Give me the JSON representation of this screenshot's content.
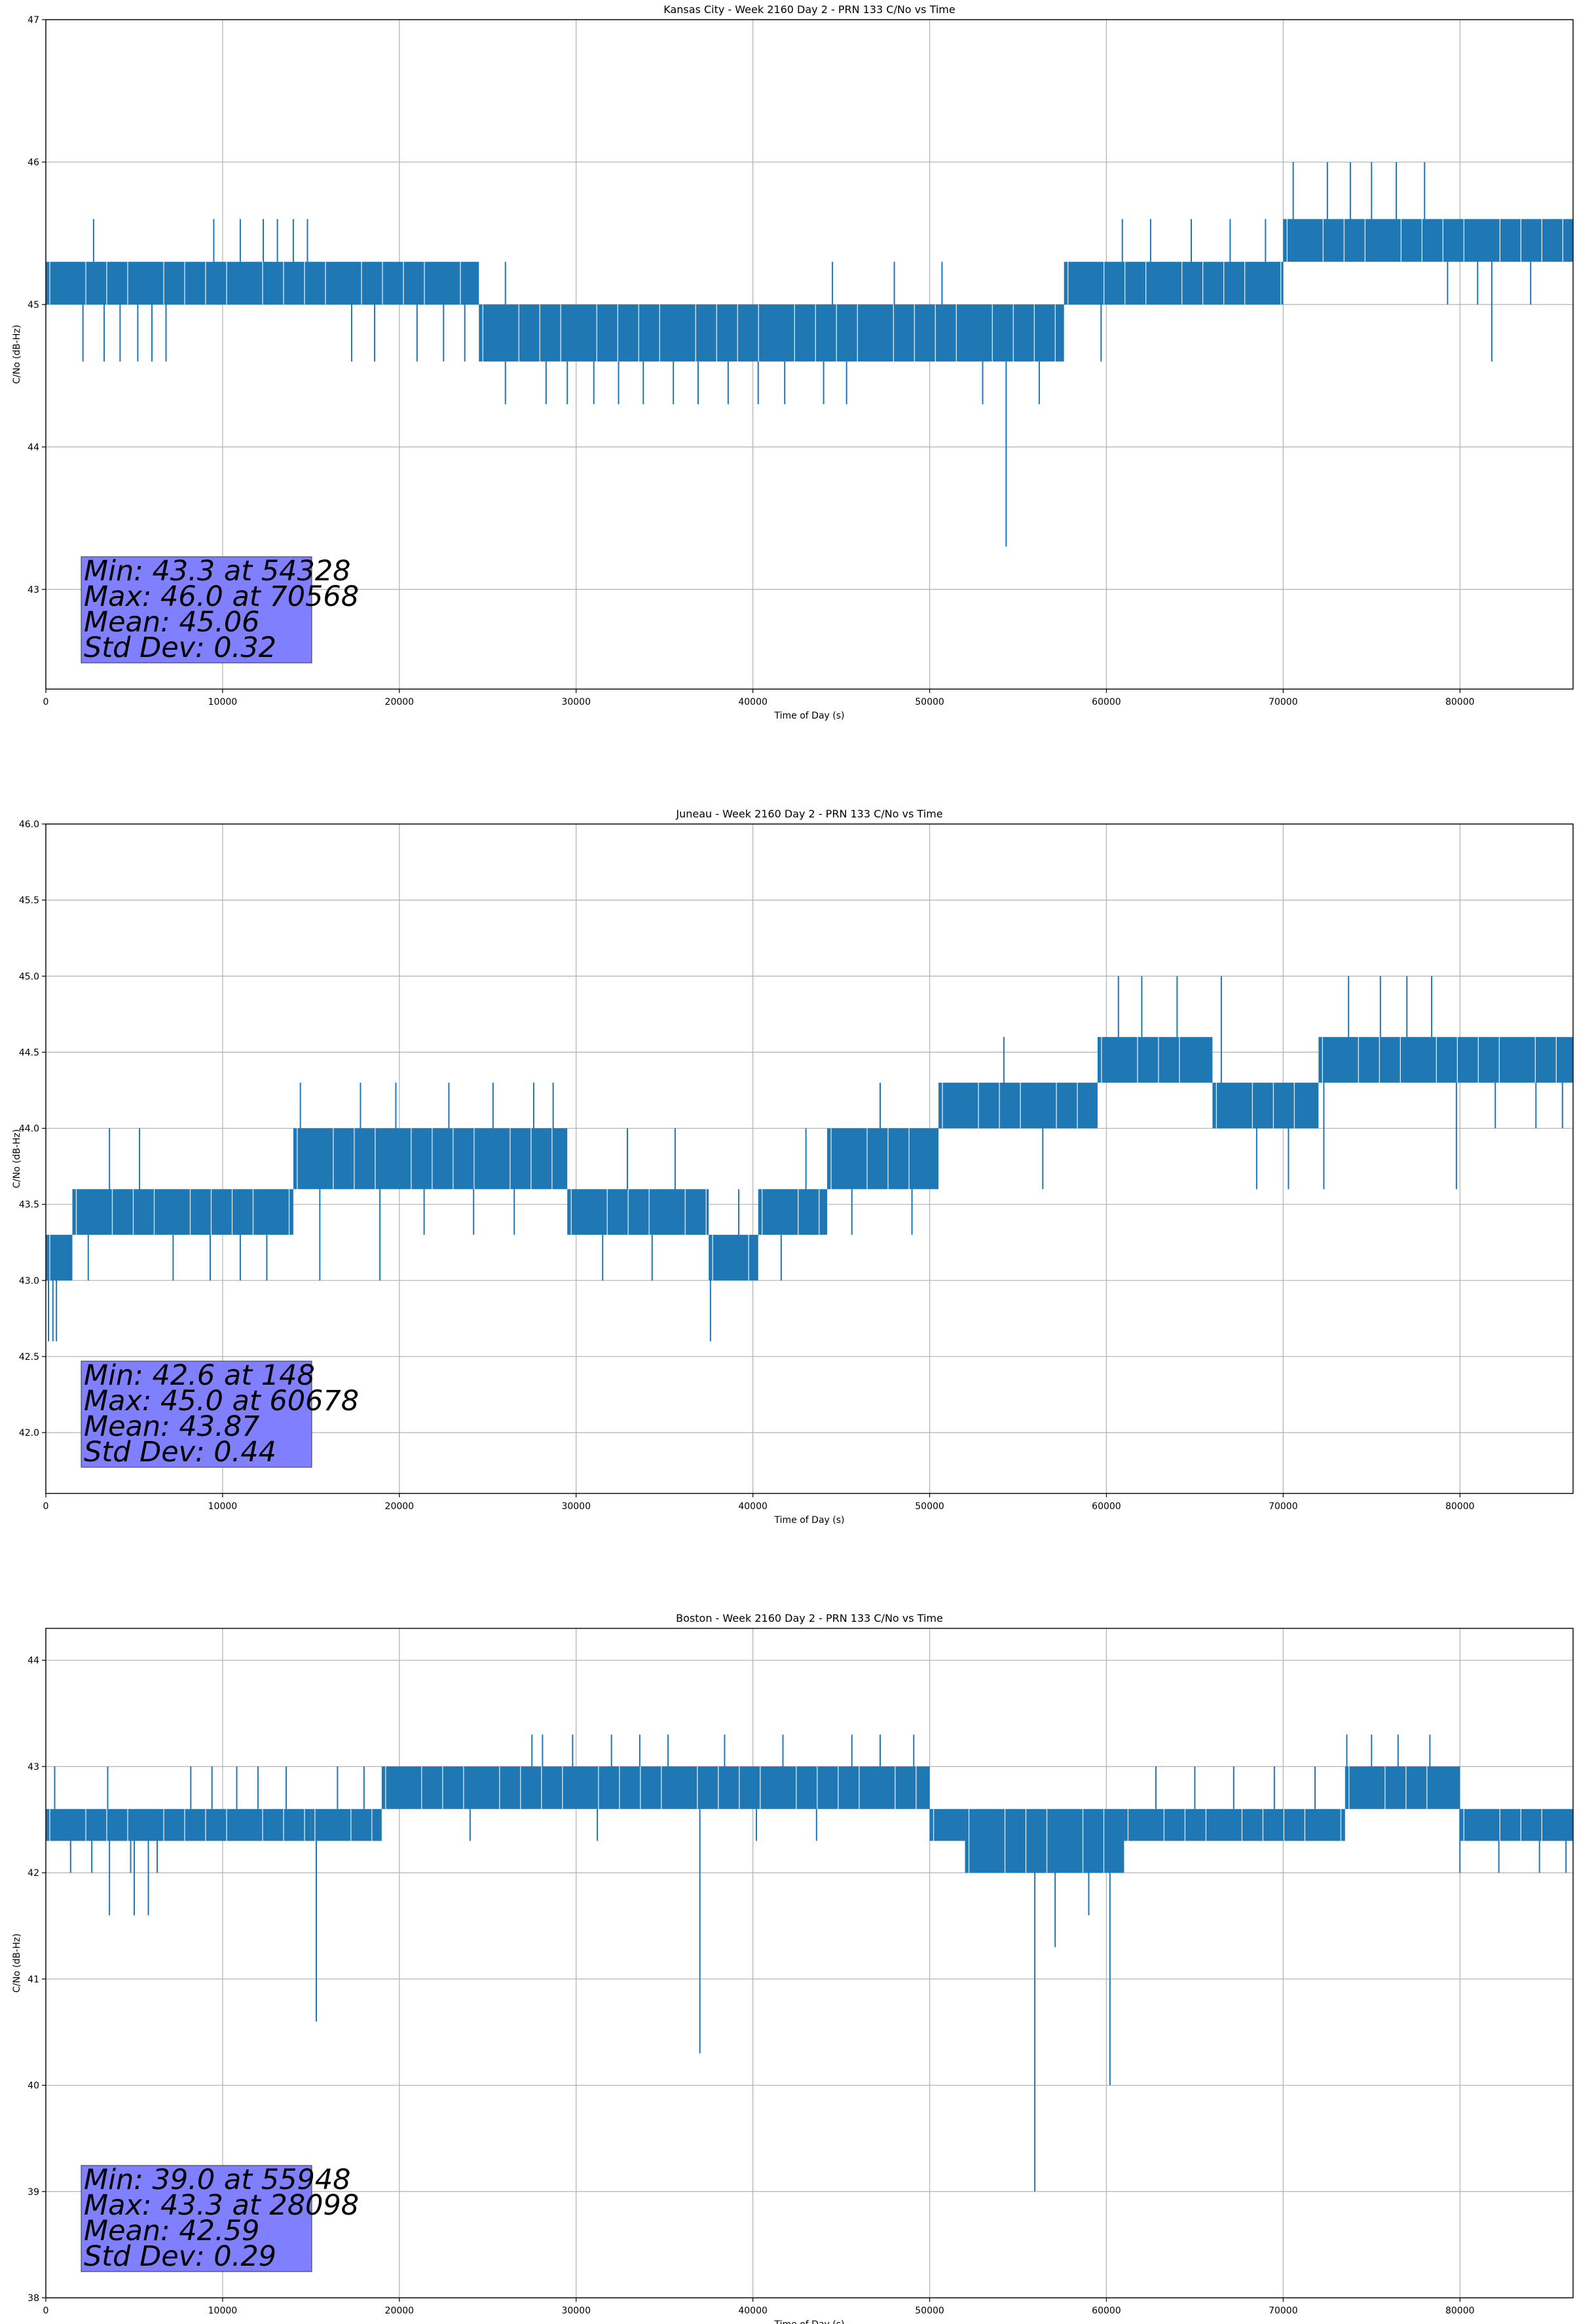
{
  "chart_data": [
    {
      "type": "line",
      "title": "Kansas City - Week 2160 Day 2 - PRN 133 C/No vs Time",
      "xlabel": "Time of Day (s)",
      "ylabel": "C/No (dB-Hz)",
      "xlim": [
        0,
        86400
      ],
      "ylim": [
        42.3,
        47.0
      ],
      "xticks": [
        0,
        10000,
        20000,
        30000,
        40000,
        50000,
        60000,
        70000,
        80000
      ],
      "yticks": [
        43,
        44,
        45,
        46,
        47
      ],
      "ytick_decimals": 0,
      "grid": true,
      "series_color": "#1f77b4",
      "segments": [
        {
          "x": [
            0,
            24500
          ],
          "low": 45.0,
          "high": 45.3
        },
        {
          "x": [
            24500,
            57600
          ],
          "low": 44.6,
          "high": 45.0
        },
        {
          "x": [
            57600,
            70000
          ],
          "low": 45.0,
          "high": 45.3
        },
        {
          "x": [
            70000,
            86400
          ],
          "low": 45.3,
          "high": 45.6
        }
      ],
      "spikes": [
        {
          "x": 1200,
          "y": 45.1
        },
        {
          "x": 2100,
          "y": 44.6
        },
        {
          "x": 3300,
          "y": 44.6
        },
        {
          "x": 4200,
          "y": 44.6
        },
        {
          "x": 5200,
          "y": 44.6
        },
        {
          "x": 6000,
          "y": 44.6
        },
        {
          "x": 6800,
          "y": 44.6
        },
        {
          "x": 2700,
          "y": 45.6
        },
        {
          "x": 9500,
          "y": 45.6
        },
        {
          "x": 11000,
          "y": 45.6
        },
        {
          "x": 12300,
          "y": 45.6
        },
        {
          "x": 13100,
          "y": 45.6
        },
        {
          "x": 14000,
          "y": 45.6
        },
        {
          "x": 14800,
          "y": 45.6
        },
        {
          "x": 17300,
          "y": 44.6
        },
        {
          "x": 18600,
          "y": 44.6
        },
        {
          "x": 21000,
          "y": 44.6
        },
        {
          "x": 22500,
          "y": 44.6
        },
        {
          "x": 23700,
          "y": 44.6
        },
        {
          "x": 26000,
          "y": 44.3
        },
        {
          "x": 28300,
          "y": 44.3
        },
        {
          "x": 29500,
          "y": 44.3
        },
        {
          "x": 31000,
          "y": 44.3
        },
        {
          "x": 32400,
          "y": 44.3
        },
        {
          "x": 33800,
          "y": 44.3
        },
        {
          "x": 35500,
          "y": 44.3
        },
        {
          "x": 36900,
          "y": 44.3
        },
        {
          "x": 38600,
          "y": 44.3
        },
        {
          "x": 40300,
          "y": 44.3
        },
        {
          "x": 41800,
          "y": 44.3
        },
        {
          "x": 44000,
          "y": 44.3
        },
        {
          "x": 45300,
          "y": 44.3
        },
        {
          "x": 26000,
          "y": 45.3
        },
        {
          "x": 44500,
          "y": 45.3
        },
        {
          "x": 48000,
          "y": 45.3
        },
        {
          "x": 50700,
          "y": 45.3
        },
        {
          "x": 53000,
          "y": 44.3
        },
        {
          "x": 54328,
          "y": 43.3
        },
        {
          "x": 56200,
          "y": 44.3
        },
        {
          "x": 59700,
          "y": 44.6
        },
        {
          "x": 60900,
          "y": 45.6
        },
        {
          "x": 62500,
          "y": 45.6
        },
        {
          "x": 64800,
          "y": 45.6
        },
        {
          "x": 67000,
          "y": 45.6
        },
        {
          "x": 69000,
          "y": 45.6
        },
        {
          "x": 70568,
          "y": 46.0
        },
        {
          "x": 72500,
          "y": 46.0
        },
        {
          "x": 73800,
          "y": 46.0
        },
        {
          "x": 75000,
          "y": 46.0
        },
        {
          "x": 76400,
          "y": 46.0
        },
        {
          "x": 78000,
          "y": 46.0
        },
        {
          "x": 79300,
          "y": 45.0
        },
        {
          "x": 81000,
          "y": 45.0
        },
        {
          "x": 81800,
          "y": 44.6
        },
        {
          "x": 84000,
          "y": 45.0
        },
        {
          "x": 85600,
          "y": 45.6
        }
      ],
      "stats": [
        "Min: 43.3 at 54328",
        "Max: 46.0 at 70568",
        "Mean: 45.06",
        "Std Dev: 0.32"
      ],
      "stats_box_color": "#8080ff"
    },
    {
      "type": "line",
      "title": "Juneau - Week 2160 Day 2 - PRN 133 C/No vs Time",
      "xlabel": "Time of Day (s)",
      "ylabel": "C/No (dB-Hz)",
      "xlim": [
        0,
        86400
      ],
      "ylim": [
        41.6,
        46.0
      ],
      "xticks": [
        0,
        10000,
        20000,
        30000,
        40000,
        50000,
        60000,
        70000,
        80000
      ],
      "yticks": [
        42.0,
        42.5,
        43.0,
        43.5,
        44.0,
        44.5,
        45.0,
        45.5,
        46.0
      ],
      "ytick_decimals": 1,
      "grid": true,
      "series_color": "#1f77b4",
      "segments": [
        {
          "x": [
            0,
            1500
          ],
          "low": 43.0,
          "high": 43.3
        },
        {
          "x": [
            1500,
            14000
          ],
          "low": 43.3,
          "high": 43.6
        },
        {
          "x": [
            14000,
            29500
          ],
          "low": 43.6,
          "high": 44.0
        },
        {
          "x": [
            29500,
            37500
          ],
          "low": 43.3,
          "high": 43.6
        },
        {
          "x": [
            37500,
            40300
          ],
          "low": 43.0,
          "high": 43.3
        },
        {
          "x": [
            40300,
            44200
          ],
          "low": 43.3,
          "high": 43.6
        },
        {
          "x": [
            44200,
            50500
          ],
          "low": 43.6,
          "high": 44.0
        },
        {
          "x": [
            50500,
            59500
          ],
          "low": 44.0,
          "high": 44.3
        },
        {
          "x": [
            59500,
            66000
          ],
          "low": 44.3,
          "high": 44.6
        },
        {
          "x": [
            66000,
            72000
          ],
          "low": 44.0,
          "high": 44.3
        },
        {
          "x": [
            72000,
            86400
          ],
          "low": 44.3,
          "high": 44.6
        }
      ],
      "spikes": [
        {
          "x": 148,
          "y": 42.6
        },
        {
          "x": 400,
          "y": 42.6
        },
        {
          "x": 600,
          "y": 42.6
        },
        {
          "x": 2400,
          "y": 43.0
        },
        {
          "x": 3600,
          "y": 44.0
        },
        {
          "x": 5300,
          "y": 44.0
        },
        {
          "x": 7200,
          "y": 43.0
        },
        {
          "x": 9300,
          "y": 43.0
        },
        {
          "x": 11000,
          "y": 43.0
        },
        {
          "x": 12500,
          "y": 43.0
        },
        {
          "x": 14400,
          "y": 44.3
        },
        {
          "x": 15500,
          "y": 43.0
        },
        {
          "x": 17800,
          "y": 44.3
        },
        {
          "x": 18900,
          "y": 43.0
        },
        {
          "x": 19800,
          "y": 44.3
        },
        {
          "x": 21400,
          "y": 43.3
        },
        {
          "x": 22800,
          "y": 44.3
        },
        {
          "x": 24200,
          "y": 43.3
        },
        {
          "x": 25300,
          "y": 44.3
        },
        {
          "x": 26500,
          "y": 43.3
        },
        {
          "x": 27600,
          "y": 44.3
        },
        {
          "x": 28700,
          "y": 44.3
        },
        {
          "x": 30000,
          "y": 43.3
        },
        {
          "x": 31500,
          "y": 43.0
        },
        {
          "x": 32900,
          "y": 44.0
        },
        {
          "x": 34300,
          "y": 43.0
        },
        {
          "x": 35600,
          "y": 44.0
        },
        {
          "x": 37600,
          "y": 42.6
        },
        {
          "x": 39200,
          "y": 43.6
        },
        {
          "x": 41600,
          "y": 43.0
        },
        {
          "x": 43000,
          "y": 44.0
        },
        {
          "x": 45600,
          "y": 43.3
        },
        {
          "x": 47200,
          "y": 44.3
        },
        {
          "x": 49000,
          "y": 43.3
        },
        {
          "x": 51300,
          "y": 44.3
        },
        {
          "x": 54200,
          "y": 44.6
        },
        {
          "x": 56400,
          "y": 43.6
        },
        {
          "x": 58100,
          "y": 44.0
        },
        {
          "x": 60678,
          "y": 45.0
        },
        {
          "x": 62000,
          "y": 45.0
        },
        {
          "x": 64000,
          "y": 45.0
        },
        {
          "x": 66500,
          "y": 45.0
        },
        {
          "x": 68500,
          "y": 43.6
        },
        {
          "x": 70300,
          "y": 43.6
        },
        {
          "x": 72300,
          "y": 43.6
        },
        {
          "x": 73700,
          "y": 45.0
        },
        {
          "x": 75500,
          "y": 45.0
        },
        {
          "x": 77000,
          "y": 45.0
        },
        {
          "x": 78400,
          "y": 45.0
        },
        {
          "x": 79800,
          "y": 43.6
        },
        {
          "x": 82000,
          "y": 44.0
        },
        {
          "x": 84300,
          "y": 44.0
        },
        {
          "x": 85800,
          "y": 44.0
        }
      ],
      "stats": [
        "Min: 42.6 at 148",
        "Max: 45.0 at 60678",
        "Mean: 43.87",
        "Std Dev: 0.44"
      ],
      "stats_box_color": "#8080ff"
    },
    {
      "type": "line",
      "title": "Boston - Week 2160 Day 2 - PRN 133 C/No vs Time",
      "xlabel": "Time of Day (s)",
      "ylabel": "C/No (dB-Hz)",
      "xlim": [
        0,
        86400
      ],
      "ylim": [
        38.0,
        44.3
      ],
      "xticks": [
        0,
        10000,
        20000,
        30000,
        40000,
        50000,
        60000,
        70000,
        80000
      ],
      "yticks": [
        38,
        39,
        40,
        41,
        42,
        43,
        44
      ],
      "ytick_decimals": 0,
      "grid": true,
      "series_color": "#1f77b4",
      "segments": [
        {
          "x": [
            0,
            15000
          ],
          "low": 42.3,
          "high": 42.6
        },
        {
          "x": [
            15000,
            19000
          ],
          "low": 42.3,
          "high": 42.6
        },
        {
          "x": [
            19000,
            50000
          ],
          "low": 42.6,
          "high": 43.0
        },
        {
          "x": [
            50000,
            52000
          ],
          "low": 42.3,
          "high": 42.6
        },
        {
          "x": [
            52000,
            61000
          ],
          "low": 42.0,
          "high": 42.6
        },
        {
          "x": [
            61000,
            73500
          ],
          "low": 42.3,
          "high": 42.6
        },
        {
          "x": [
            73500,
            80000
          ],
          "low": 42.6,
          "high": 43.0
        },
        {
          "x": [
            80000,
            86400
          ],
          "low": 42.3,
          "high": 42.6
        }
      ],
      "spikes": [
        {
          "x": 500,
          "y": 43.0
        },
        {
          "x": 1400,
          "y": 42.0
        },
        {
          "x": 2600,
          "y": 42.0
        },
        {
          "x": 3500,
          "y": 43.0
        },
        {
          "x": 3600,
          "y": 41.6
        },
        {
          "x": 4800,
          "y": 42.0
        },
        {
          "x": 5000,
          "y": 41.6
        },
        {
          "x": 5800,
          "y": 41.6
        },
        {
          "x": 6300,
          "y": 42.0
        },
        {
          "x": 8200,
          "y": 43.0
        },
        {
          "x": 9400,
          "y": 43.0
        },
        {
          "x": 10800,
          "y": 43.0
        },
        {
          "x": 12000,
          "y": 43.0
        },
        {
          "x": 13600,
          "y": 43.0
        },
        {
          "x": 15300,
          "y": 40.6
        },
        {
          "x": 16500,
          "y": 43.0
        },
        {
          "x": 18000,
          "y": 43.0
        },
        {
          "x": 24000,
          "y": 42.3
        },
        {
          "x": 27500,
          "y": 43.3
        },
        {
          "x": 28098,
          "y": 43.3
        },
        {
          "x": 29800,
          "y": 43.3
        },
        {
          "x": 31200,
          "y": 42.3
        },
        {
          "x": 32000,
          "y": 43.3
        },
        {
          "x": 33600,
          "y": 43.3
        },
        {
          "x": 35200,
          "y": 43.3
        },
        {
          "x": 37000,
          "y": 40.3
        },
        {
          "x": 38400,
          "y": 43.3
        },
        {
          "x": 40200,
          "y": 42.3
        },
        {
          "x": 41700,
          "y": 43.3
        },
        {
          "x": 43600,
          "y": 42.3
        },
        {
          "x": 45600,
          "y": 43.3
        },
        {
          "x": 47200,
          "y": 43.3
        },
        {
          "x": 49100,
          "y": 43.3
        },
        {
          "x": 54000,
          "y": 42.0
        },
        {
          "x": 55948,
          "y": 39.0
        },
        {
          "x": 57100,
          "y": 41.3
        },
        {
          "x": 59000,
          "y": 41.6
        },
        {
          "x": 60200,
          "y": 40.0
        },
        {
          "x": 62800,
          "y": 43.0
        },
        {
          "x": 65000,
          "y": 43.0
        },
        {
          "x": 67200,
          "y": 43.0
        },
        {
          "x": 69500,
          "y": 43.0
        },
        {
          "x": 71800,
          "y": 43.0
        },
        {
          "x": 73600,
          "y": 43.3
        },
        {
          "x": 75000,
          "y": 43.3
        },
        {
          "x": 76500,
          "y": 43.3
        },
        {
          "x": 78300,
          "y": 43.3
        },
        {
          "x": 80000,
          "y": 42.0
        },
        {
          "x": 82200,
          "y": 42.0
        },
        {
          "x": 84500,
          "y": 42.0
        },
        {
          "x": 86000,
          "y": 42.0
        }
      ],
      "stats": [
        "Min: 39.0 at 55948",
        "Max: 43.3 at 28098",
        "Mean: 42.59",
        "Std Dev: 0.29"
      ],
      "stats_box_color": "#8080ff"
    }
  ]
}
